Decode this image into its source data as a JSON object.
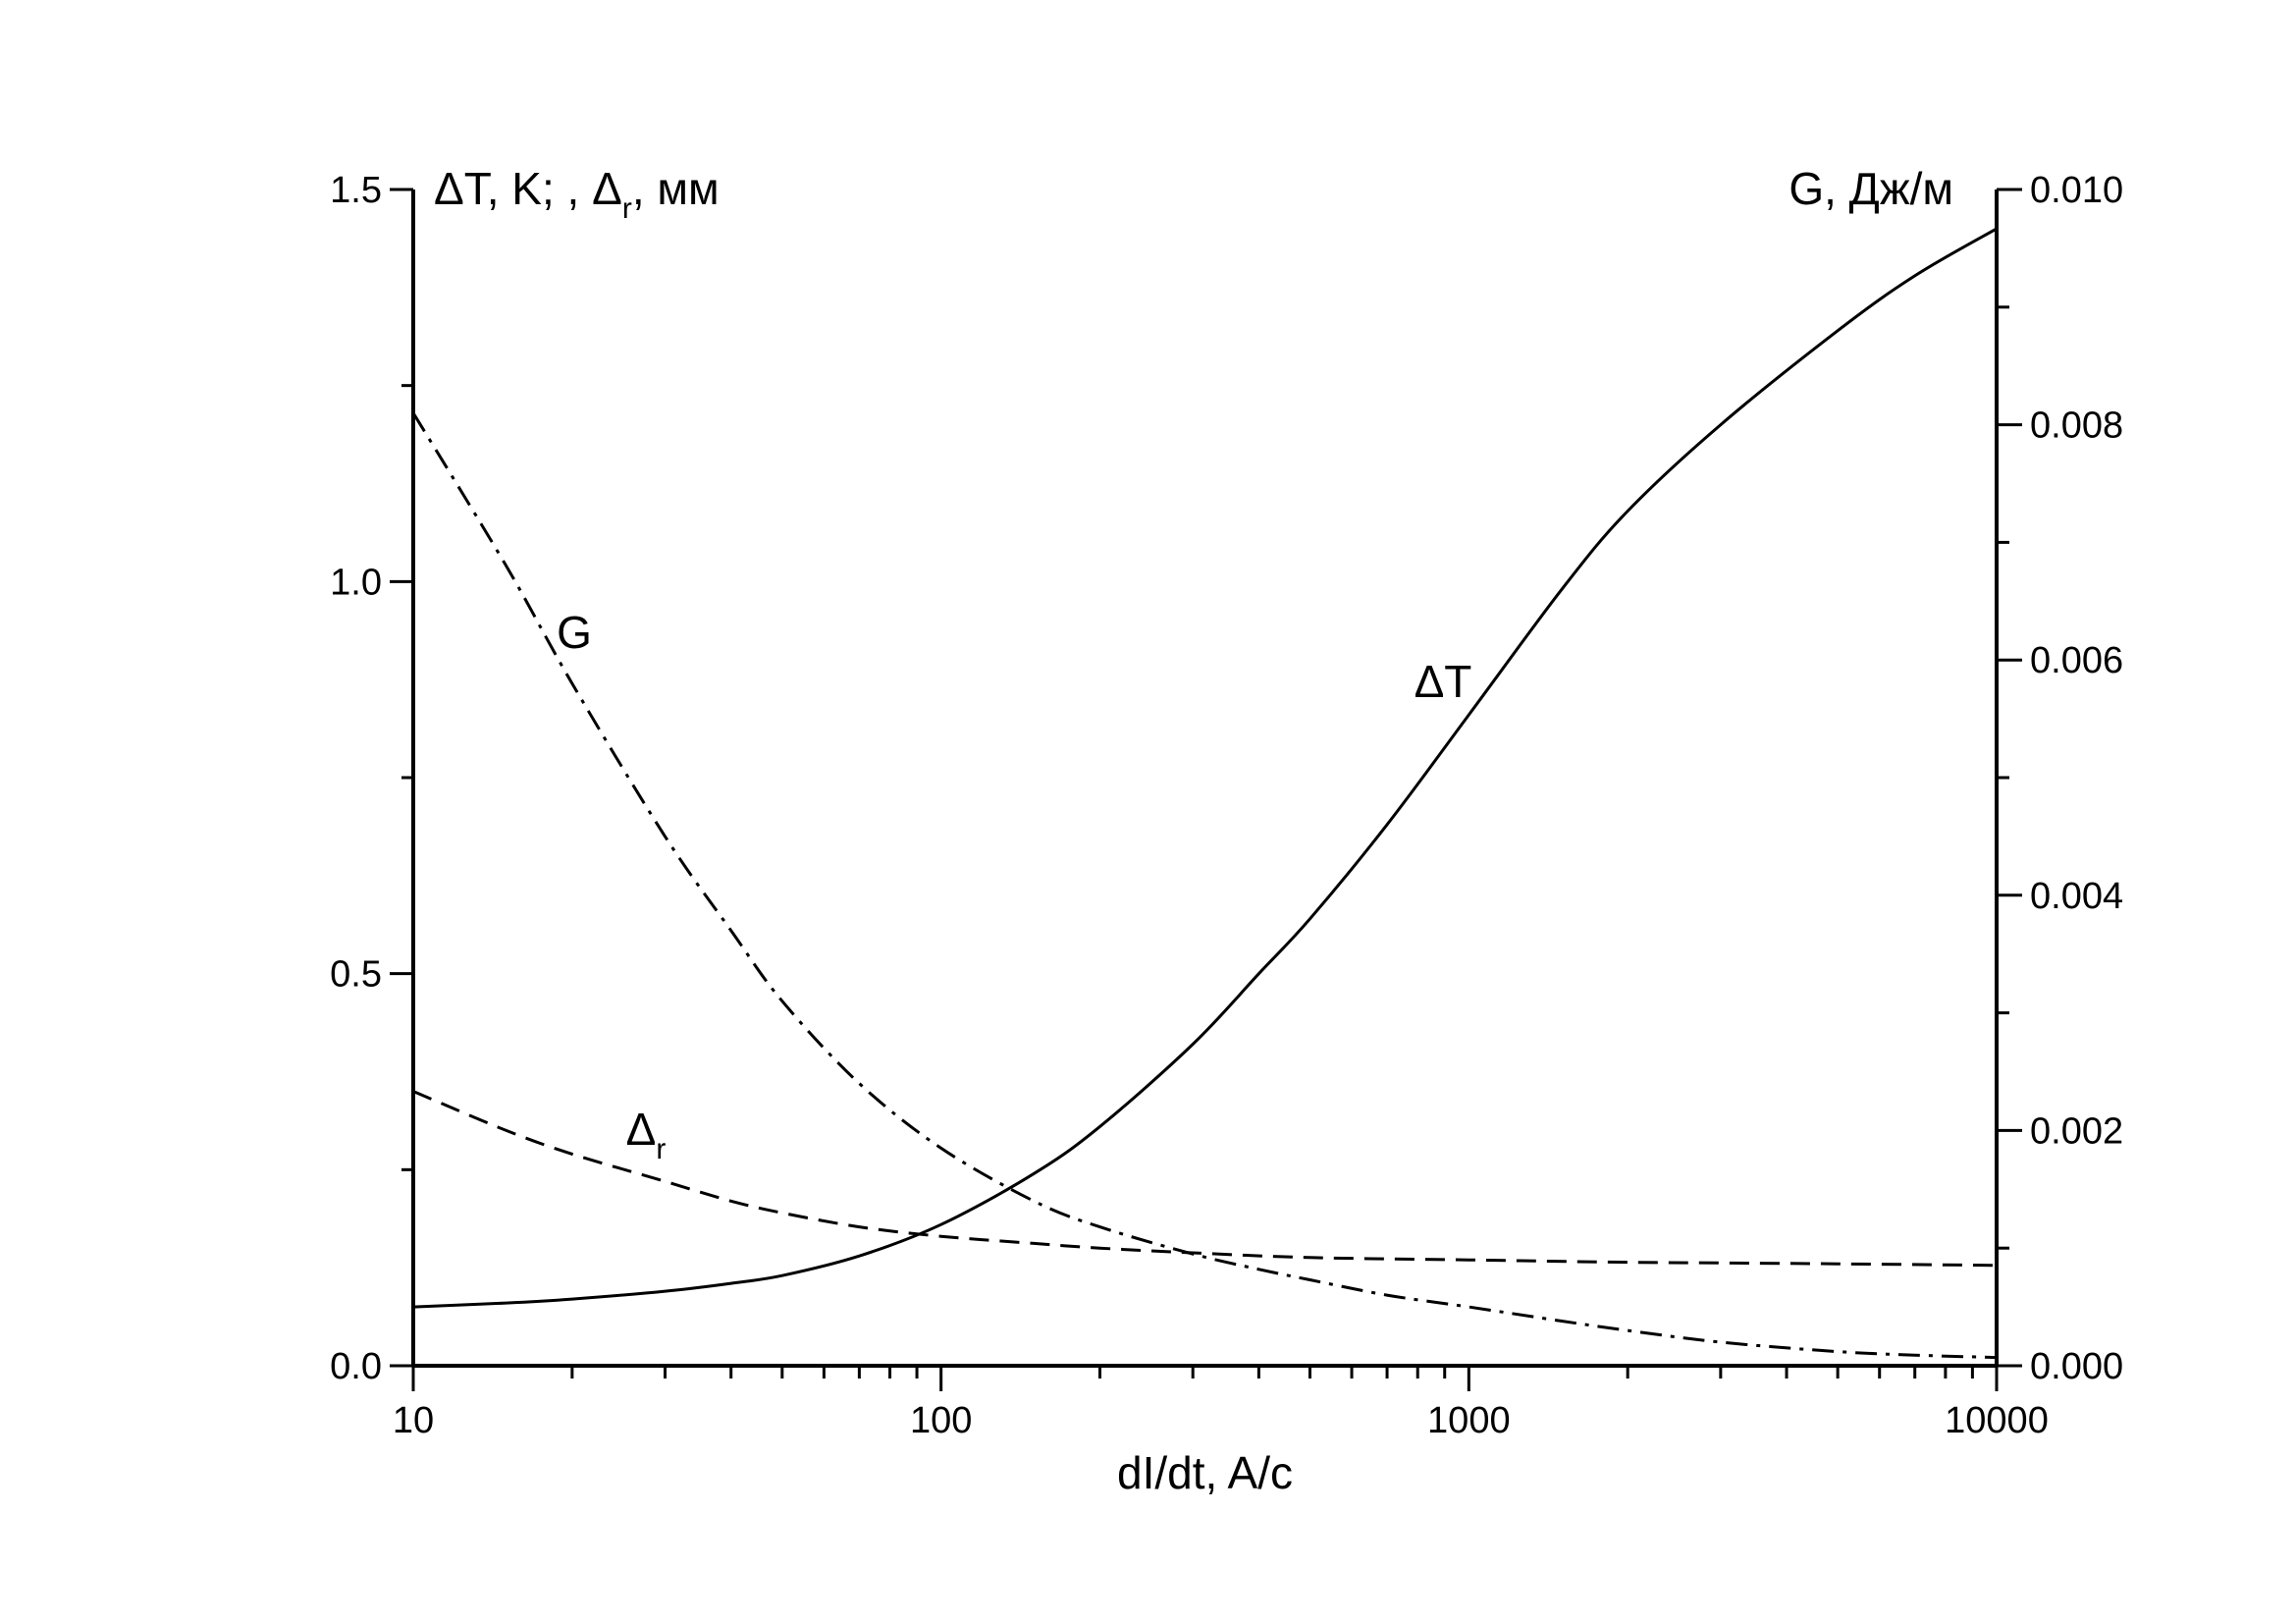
{
  "chart_data": {
    "type": "line",
    "xlabel": "dI/dt, A/c",
    "xscale": "log",
    "xlim": [
      10,
      10000
    ],
    "x_ticks": [
      "10",
      "100",
      "1000",
      "10000"
    ],
    "ylabel_left": {
      "prefix": "ΔT, K; , Δ",
      "sub": "r",
      "suffix": ", мм"
    },
    "ylim_left": [
      0,
      1.5
    ],
    "y_ticks_left": [
      "0.0",
      "0.5",
      "1.0",
      "1.5"
    ],
    "ylabel_right": "G, Дж/м",
    "ylim_right": [
      0,
      0.01
    ],
    "y_ticks_right": [
      "0.000",
      "0.002",
      "0.004",
      "0.006",
      "0.008",
      "0.010"
    ],
    "grid": false,
    "series": [
      {
        "name": "ΔT",
        "axis": "left",
        "style": "solid",
        "label": {
          "text": "ΔT",
          "sub": ""
        },
        "x": [
          10,
          15,
          20,
          30,
          40,
          50,
          70,
          100,
          150,
          200,
          300,
          400,
          500,
          700,
          1000,
          1500,
          2000,
          3000,
          5000,
          7000,
          10000
        ],
        "y": [
          0.075,
          0.08,
          0.085,
          0.095,
          0.105,
          0.115,
          0.14,
          0.18,
          0.245,
          0.305,
          0.41,
          0.5,
          0.57,
          0.69,
          0.83,
          0.99,
          1.09,
          1.2,
          1.32,
          1.39,
          1.45
        ]
      },
      {
        "name": "G",
        "axis": "right",
        "style": "dash-dot",
        "label": {
          "text": "G",
          "sub": ""
        },
        "x": [
          10,
          15,
          20,
          30,
          40,
          50,
          70,
          100,
          150,
          200,
          300,
          400,
          500,
          700,
          1000,
          1500,
          2000,
          3000,
          5000,
          7000,
          10000
        ],
        "y": [
          0.0081,
          0.0068,
          0.0058,
          0.0045,
          0.0037,
          0.0031,
          0.0024,
          0.00185,
          0.0014,
          0.00118,
          0.00095,
          0.00082,
          0.00073,
          0.0006,
          0.0005,
          0.00038,
          0.0003,
          0.0002,
          0.00012,
          9e-05,
          7e-05
        ]
      },
      {
        "name": "Δr",
        "axis": "left",
        "style": "dashed",
        "label": {
          "text": "Δ",
          "sub": "r"
        },
        "x": [
          10,
          15,
          20,
          30,
          40,
          50,
          70,
          100,
          150,
          200,
          300,
          500,
          1000,
          2000,
          5000,
          10000
        ],
        "y": [
          0.35,
          0.3,
          0.27,
          0.235,
          0.21,
          0.195,
          0.177,
          0.165,
          0.156,
          0.15,
          0.144,
          0.138,
          0.135,
          0.132,
          0.13,
          0.128
        ]
      }
    ]
  }
}
